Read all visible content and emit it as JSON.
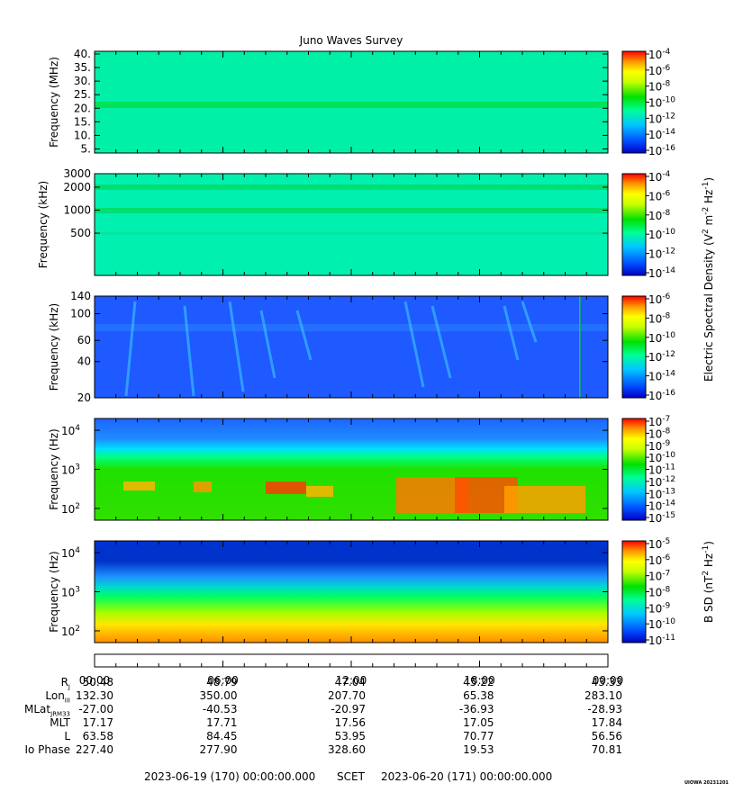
{
  "title": "Juno Waves Survey",
  "chart_data": [
    {
      "type": "heatmap",
      "name": "panel-1",
      "ylabel": "Frequency (MHz)",
      "yscale": "linear",
      "ylim": [
        3.5,
        41
      ],
      "yticks": [
        {
          "v": 5,
          "label": "5."
        },
        {
          "v": 10,
          "label": "10."
        },
        {
          "v": 15,
          "label": "15."
        },
        {
          "v": 20,
          "label": "20."
        },
        {
          "v": 25,
          "label": "25."
        },
        {
          "v": 30,
          "label": "30."
        },
        {
          "v": 35,
          "label": "35."
        },
        {
          "v": 40,
          "label": "40."
        }
      ],
      "bands": [
        {
          "at": 21.5,
          "note": "enhanced emission band"
        }
      ],
      "colorbar": {
        "label": "",
        "ticks": [
          {
            "b": "10",
            "e": "-4"
          },
          {
            "b": "10",
            "e": "-6"
          },
          {
            "b": "10",
            "e": "-8"
          },
          {
            "b": "10",
            "e": "-10"
          },
          {
            "b": "10",
            "e": "-12"
          },
          {
            "b": "10",
            "e": "-14"
          },
          {
            "b": "10",
            "e": "-16"
          }
        ]
      }
    },
    {
      "type": "heatmap",
      "name": "panel-2",
      "ylabel": "Frequency (kHz)",
      "yscale": "log",
      "ylim": [
        140,
        3000
      ],
      "yticks": [
        {
          "v": 500,
          "label": "500"
        },
        {
          "v": 1000,
          "label": "1000"
        },
        {
          "v": 2000,
          "label": "2000"
        },
        {
          "v": 3000,
          "label": "3000"
        }
      ],
      "bands": [
        {
          "at": 2000
        },
        {
          "at": 1000
        },
        {
          "at": 500
        }
      ],
      "colorbar": {
        "label": "",
        "ticks": [
          {
            "b": "10",
            "e": "-4"
          },
          {
            "b": "10",
            "e": "-6"
          },
          {
            "b": "10",
            "e": "-8"
          },
          {
            "b": "10",
            "e": "-10"
          },
          {
            "b": "10",
            "e": "-12"
          },
          {
            "b": "10",
            "e": "-14"
          }
        ]
      }
    },
    {
      "type": "heatmap",
      "name": "panel-3",
      "ylabel": "Frequency (kHz)",
      "yscale": "log",
      "ylim": [
        20,
        140
      ],
      "yticks": [
        {
          "v": 20,
          "label": "20"
        },
        {
          "v": 40,
          "label": "40"
        },
        {
          "v": 60,
          "label": "60"
        },
        {
          "v": 100,
          "label": "100"
        },
        {
          "v": 140,
          "label": "140"
        }
      ],
      "colorbar": {
        "label": "Electric Spectral Density (V",
        "label_sup1": "2",
        "label_mid": " m",
        "label_sup2": "-2",
        "label_mid2": " Hz",
        "label_sup3": "-1",
        "label_end": ")",
        "ticks": [
          {
            "b": "10",
            "e": "-6"
          },
          {
            "b": "10",
            "e": "-8"
          },
          {
            "b": "10",
            "e": "-10"
          },
          {
            "b": "10",
            "e": "-12"
          },
          {
            "b": "10",
            "e": "-14"
          },
          {
            "b": "10",
            "e": "-16"
          }
        ]
      }
    },
    {
      "type": "heatmap",
      "name": "panel-4",
      "ylabel": "Frequency (Hz)",
      "yscale": "log",
      "ylim": [
        50,
        20000
      ],
      "yticks": [
        {
          "v": 100,
          "b": "10",
          "e": "2"
        },
        {
          "v": 1000,
          "b": "10",
          "e": "3"
        },
        {
          "v": 10000,
          "b": "10",
          "e": "4"
        }
      ],
      "colorbar": {
        "label": "",
        "ticks": [
          {
            "b": "10",
            "e": "-7"
          },
          {
            "b": "10",
            "e": "-8"
          },
          {
            "b": "10",
            "e": "-9"
          },
          {
            "b": "10",
            "e": "-10"
          },
          {
            "b": "10",
            "e": "-11"
          },
          {
            "b": "10",
            "e": "-12"
          },
          {
            "b": "10",
            "e": "-13"
          },
          {
            "b": "10",
            "e": "-14"
          },
          {
            "b": "10",
            "e": "-15"
          }
        ]
      }
    },
    {
      "type": "heatmap",
      "name": "panel-5",
      "ylabel": "Frequency (Hz)",
      "yscale": "log",
      "ylim": [
        50,
        20000
      ],
      "yticks": [
        {
          "v": 100,
          "b": "10",
          "e": "2"
        },
        {
          "v": 1000,
          "b": "10",
          "e": "3"
        },
        {
          "v": 10000,
          "b": "10",
          "e": "4"
        }
      ],
      "colorbar": {
        "label": "B SD (nT",
        "label_sup1": "2",
        "label_mid": " Hz",
        "label_sup2": "-1",
        "label_end": ")",
        "ticks": [
          {
            "b": "10",
            "e": "-5"
          },
          {
            "b": "10",
            "e": "-6"
          },
          {
            "b": "10",
            "e": "-7"
          },
          {
            "b": "10",
            "e": "-8"
          },
          {
            "b": "10",
            "e": "-9"
          },
          {
            "b": "10",
            "e": "-10"
          },
          {
            "b": "10",
            "e": "-11"
          }
        ]
      }
    }
  ],
  "x_axis": {
    "tick_labels": [
      "00:00",
      "06:00",
      "12:00",
      "18:00",
      "00:00"
    ]
  },
  "ephemeris": [
    {
      "label": "R",
      "sub": "J",
      "values": [
        "50.48",
        "48.79",
        "47.04",
        "45.22",
        "43.33"
      ]
    },
    {
      "label": "Lon",
      "sub": "III",
      "values": [
        "132.30",
        "350.00",
        "207.70",
        "65.38",
        "283.10"
      ]
    },
    {
      "label": "MLat",
      "sub": "JRM33",
      "values": [
        "-27.00",
        "-40.53",
        "-20.97",
        "-36.93",
        "-28.93"
      ]
    },
    {
      "label": "MLT",
      "sub": "",
      "values": [
        "17.17",
        "17.71",
        "17.56",
        "17.05",
        "17.84"
      ]
    },
    {
      "label": "L",
      "sub": "",
      "values": [
        "63.58",
        "84.45",
        "53.95",
        "70.77",
        "56.56"
      ]
    },
    {
      "label": "Io Phase",
      "sub": "",
      "values": [
        "227.40",
        "277.90",
        "328.60",
        "19.53",
        "70.81"
      ]
    }
  ],
  "footer": {
    "start": "2023-06-19 (170) 00:00:00.000",
    "scet": "SCET",
    "end": "2023-06-20 (171) 00:00:00.000"
  },
  "credit": "UIOWA 20231201"
}
